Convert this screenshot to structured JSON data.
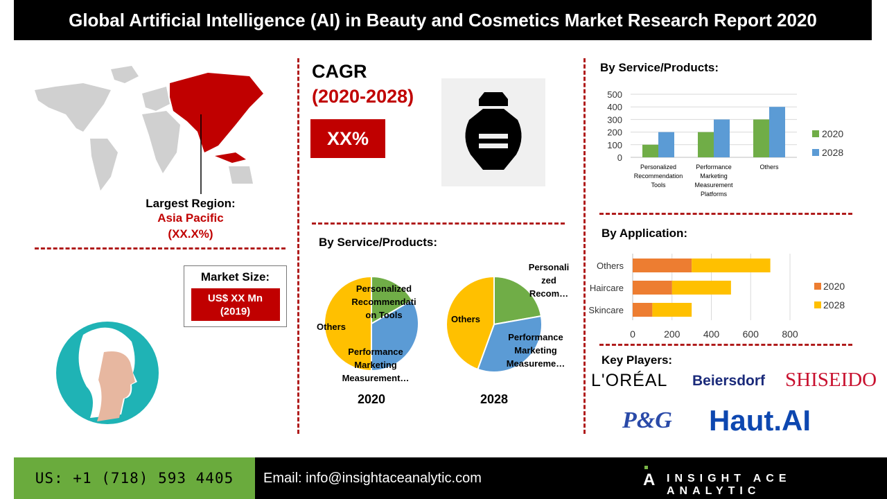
{
  "title": "Global Artificial Intelligence (AI) in Beauty and Cosmetics Market Research Report 2020",
  "region": {
    "label": "Largest Region:",
    "name": "Asia Pacific",
    "share": "(XX.X%)"
  },
  "market_size": {
    "label": "Market Size:",
    "value": "US$ XX Mn",
    "year": "(2019)"
  },
  "cagr": {
    "label": "CAGR",
    "period": "(2020-2028)",
    "value": "XX%"
  },
  "icons": [
    "world-map",
    "perfume-bottle-icon",
    "face-profile-icon"
  ],
  "colors": {
    "accent": "#c00000",
    "green": "#70ad47",
    "blue": "#5b9bd5",
    "orange": "#ed7d31",
    "yellow": "#ffc000"
  },
  "key_players": {
    "label": "Key Players:",
    "logos": [
      "L'ORÉAL",
      "Beiersdorf",
      "SHISEIDO",
      "P&G",
      "Haut.AI"
    ]
  },
  "footer": {
    "phone": "US: +1 (718) 593 4405",
    "email": "Email: info@insightaceanalytic.com",
    "brand": "INSIGHT ACE ANALYTIC"
  },
  "chart_data": [
    {
      "type": "pie",
      "title": "By Service/Products:",
      "subtitle": "2020",
      "labels": [
        "Personalized Recommendation Tools",
        "Performance Marketing Measurement…",
        "Others"
      ],
      "values": [
        100,
        200,
        300
      ]
    },
    {
      "type": "pie",
      "subtitle": "2028",
      "labels": [
        "Personalized Recom…",
        "Performance Marketing Measureme…",
        "Others"
      ],
      "values": [
        200,
        300,
        400
      ]
    },
    {
      "type": "bar",
      "title": "By Service/Products:",
      "categories": [
        "Personalized Recommendation Tools",
        "Performance Marketing Measurement Platforms",
        "Others"
      ],
      "series": [
        {
          "name": "2020",
          "values": [
            100,
            200,
            300
          ]
        },
        {
          "name": "2028",
          "values": [
            200,
            300,
            400
          ]
        }
      ],
      "ylim": [
        0,
        500
      ],
      "yticks": [
        "0",
        "100",
        "200",
        "300",
        "400",
        "500"
      ],
      "grid": true,
      "legend": "right"
    },
    {
      "type": "bar",
      "orientation": "horizontal",
      "stacked": true,
      "title": "By Application:",
      "categories": [
        "Others",
        "Haircare",
        "Skincare"
      ],
      "series": [
        {
          "name": "2020",
          "values": [
            300,
            200,
            100
          ]
        },
        {
          "name": "2028",
          "values": [
            400,
            300,
            200
          ]
        }
      ],
      "xlim": [
        0,
        800
      ],
      "xticks": [
        "0",
        "200",
        "400",
        "600",
        "800"
      ],
      "grid": true,
      "legend": "right"
    }
  ]
}
